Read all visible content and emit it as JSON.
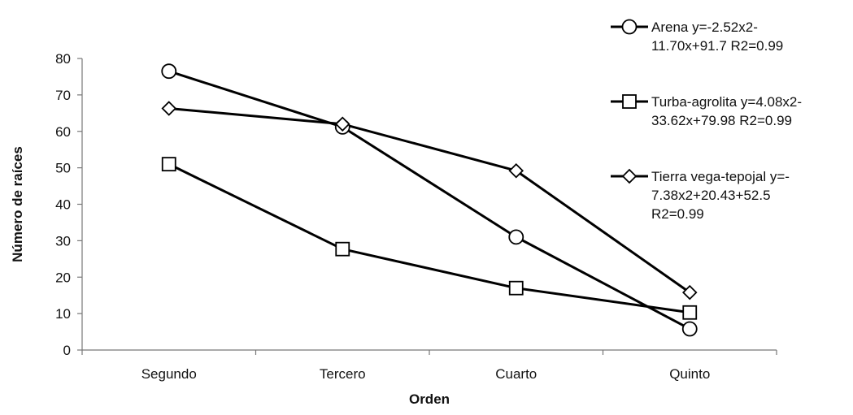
{
  "chart_data": {
    "type": "line",
    "title": "",
    "xlabel": "Orden",
    "ylabel": "Número de raíces",
    "categories": [
      "Segundo",
      "Tercero",
      "Cuarto",
      "Quinto"
    ],
    "ylim": [
      0,
      80
    ],
    "yticks": [
      0,
      10,
      20,
      30,
      40,
      50,
      60,
      70,
      80
    ],
    "grid": false,
    "legend_position": "right",
    "line_color": "#000000",
    "series": [
      {
        "name": "Arena y=-2.52x2-11.70x+91.7   R2=0.99",
        "legend_lines": [
          "Arena y=-2.52x2-",
          "11.70x+91.7   R2=0.99"
        ],
        "marker": "circle",
        "values": [
          76.5,
          61.2,
          31.0,
          5.8
        ]
      },
      {
        "name": "Turba-agrolita y=4.08x2-33.62x+79.98 R2=0.99",
        "legend_lines": [
          "Turba-agrolita y=4.08x2-",
          "33.62x+79.98 R2=0.99"
        ],
        "marker": "square",
        "values": [
          51.0,
          27.7,
          17.0,
          10.3
        ]
      },
      {
        "name": "Tierra vega-tepojal y=-7.38x2+20.43+52.5 R2=0.99",
        "legend_lines": [
          "Tierra vega-tepojal y=-",
          "7.38x2+20.43+52.5",
          "R2=0.99"
        ],
        "marker": "diamond",
        "values": [
          66.3,
          62.0,
          49.2,
          15.8
        ]
      }
    ]
  }
}
